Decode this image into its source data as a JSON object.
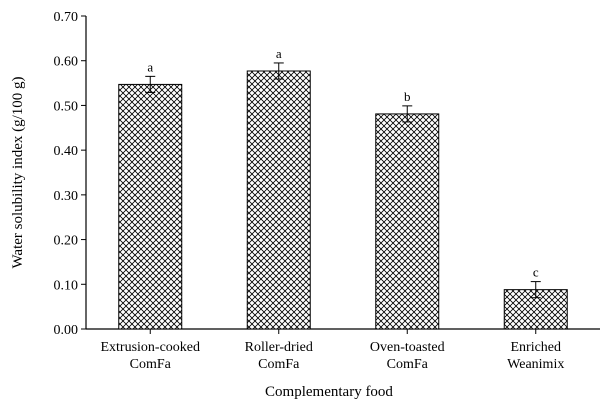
{
  "chart_data": {
    "type": "bar",
    "categories": [
      [
        "Extrusion-cooked",
        "ComFa"
      ],
      [
        "Roller-dried",
        "ComFa"
      ],
      [
        "Oven-toasted",
        "ComFa"
      ],
      [
        "Enriched",
        "Weanimix"
      ]
    ],
    "values": [
      0.547,
      0.577,
      0.481,
      0.088
    ],
    "errors": [
      0.018,
      0.018,
      0.018,
      0.018
    ],
    "significance_letters": [
      "a",
      "a",
      "b",
      "c"
    ],
    "xlabel": "Complementary food",
    "ylabel": "Water solubility index (g/100 g)",
    "ylim": [
      0,
      0.7
    ],
    "yticks": [
      "0.00",
      "0.10",
      "0.20",
      "0.30",
      "0.40",
      "0.50",
      "0.60",
      "0.70"
    ],
    "bar_fill": "crosshatch",
    "colors": {
      "bar_pattern": "#000000",
      "axis": "#000000",
      "background": "#ffffff"
    },
    "grid": false,
    "legend": "none"
  }
}
